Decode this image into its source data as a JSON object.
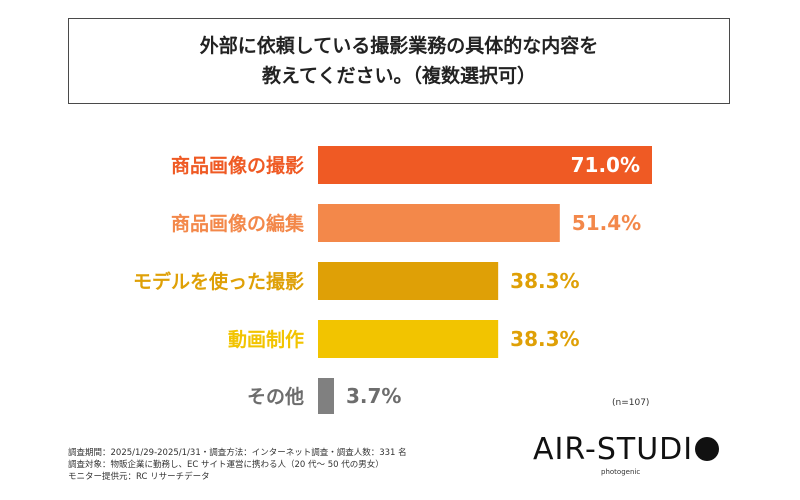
{
  "title": {
    "line1": "外部に依頼している撮影業務の具体的な内容を",
    "line2": "教えてください。（複数選択可）"
  },
  "chart_data": {
    "type": "bar",
    "orientation": "horizontal",
    "categories": [
      "商品画像の撮影",
      "商品画像の編集",
      "モデルを使った撮影",
      "動画制作",
      "その他"
    ],
    "values": [
      71.0,
      51.4,
      38.3,
      38.3,
      3.7
    ],
    "value_labels": [
      "71.0%",
      "51.4%",
      "38.3%",
      "38.3%",
      "3.7%"
    ],
    "bar_colors": [
      "#ef5a24",
      "#f3884a",
      "#dfa006",
      "#f2c400",
      "#808080"
    ],
    "label_colors": [
      "#ef5a24",
      "#f3884a",
      "#dfa006",
      "#f2c400",
      "#6d6d6d"
    ],
    "value_label_colors": [
      "#ffffff",
      "#f3884a",
      "#dfa006",
      "#dfa006",
      "#6d6d6d"
    ],
    "value_label_inside": [
      true,
      false,
      false,
      false,
      false
    ],
    "xlim": [
      0,
      71.0
    ],
    "grid": false,
    "legend": "none"
  },
  "note": "(n=107)",
  "footer": {
    "line1": "調査期間：2025/1/29-2025/1/31・調査方法：インターネット調査・調査人数：331 名",
    "line2": "調査対象：物販企業に勤務し、EC サイト運営に携わる人（20 代～ 50 代の男女）",
    "line3": "モニター提供元：RC リサーチデータ"
  },
  "logo": {
    "text": "AIR-STUDIO",
    "sub": "photogenic"
  }
}
